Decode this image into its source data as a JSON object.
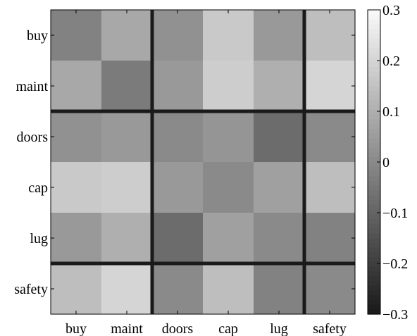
{
  "chart_data": {
    "type": "heatmap",
    "title": "",
    "xlabel": "",
    "ylabel": "",
    "x_categories": [
      "buy",
      "maint",
      "doors",
      "cap",
      "lug",
      "safety"
    ],
    "y_categories": [
      "buy",
      "maint",
      "doors",
      "cap",
      "lug",
      "safety"
    ],
    "values": [
      [
        -0.02,
        0.08,
        0.02,
        0.17,
        0.04,
        0.14
      ],
      [
        0.08,
        -0.04,
        0.04,
        0.18,
        0.1,
        0.2
      ],
      [
        0.02,
        0.04,
        0.0,
        0.03,
        -0.08,
        0.0
      ],
      [
        0.17,
        0.18,
        0.04,
        0.0,
        0.06,
        0.14
      ],
      [
        0.04,
        0.1,
        -0.08,
        0.06,
        0.0,
        -0.02
      ],
      [
        0.14,
        0.2,
        0.0,
        0.14,
        -0.02,
        0.0
      ]
    ],
    "colorbar": {
      "min": -0.3,
      "max": 0.3,
      "ticks": [
        0.3,
        0.2,
        0.1,
        0,
        -0.1,
        -0.2,
        -0.3
      ],
      "tick_labels": [
        "0.3",
        "0.2",
        "0.1",
        "0",
        "−0.1",
        "−0.2",
        "−0.3"
      ],
      "colormap": "gray"
    },
    "group_boundaries_after": [
      2,
      5
    ],
    "grid": false,
    "legend": "colorbar-right"
  }
}
